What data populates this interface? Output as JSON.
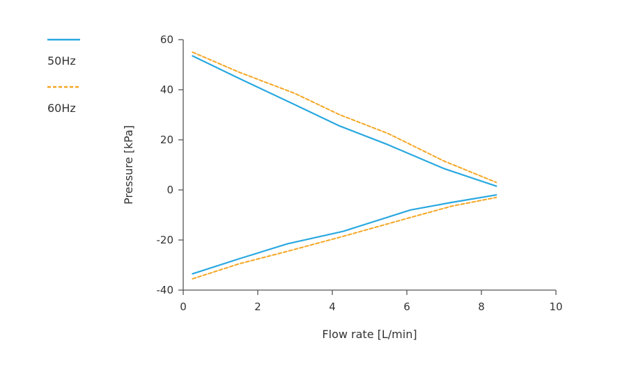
{
  "chart_data": {
    "type": "line",
    "title": "",
    "xlabel": "Flow rate [L/min]",
    "ylabel": "Pressure [kPa]",
    "xlim": [
      0,
      10
    ],
    "ylim": [
      -40,
      60
    ],
    "xticks": [
      0,
      2,
      4,
      6,
      8,
      10
    ],
    "yticks": [
      -40,
      -20,
      0,
      20,
      40,
      60
    ],
    "grid": false,
    "legend_position": "top-left",
    "series": [
      {
        "name": "50Hz",
        "label": "50Hz",
        "color": "#29a8e0",
        "dash": "solid",
        "x": [
          0.25,
          1.5,
          3.0,
          4.2,
          5.5,
          7.0,
          8.4
        ],
        "y": [
          53.5,
          44.5,
          34.0,
          25.5,
          18.0,
          8.5,
          1.5
        ]
      },
      {
        "name": "60Hz",
        "label": "60Hz",
        "color": "#f5a623",
        "dash": "dashed",
        "x": [
          0.25,
          1.5,
          3.0,
          4.2,
          5.5,
          7.0,
          8.4
        ],
        "y": [
          55.0,
          47.0,
          38.5,
          30.0,
          22.5,
          11.5,
          3.0
        ]
      },
      {
        "name": "50Hz",
        "label": "50Hz",
        "color": "#29a8e0",
        "dash": "solid",
        "x": [
          0.25,
          1.5,
          2.8,
          4.3,
          6.1,
          7.2,
          8.4
        ],
        "y": [
          -33.5,
          -27.5,
          -21.5,
          -16.5,
          -8.0,
          -5.0,
          -2.0
        ]
      },
      {
        "name": "60Hz",
        "label": "60Hz",
        "color": "#f5a623",
        "dash": "dashed",
        "x": [
          0.25,
          1.5,
          2.8,
          4.3,
          6.1,
          7.2,
          8.4
        ],
        "y": [
          -35.5,
          -29.5,
          -24.5,
          -18.5,
          -11.0,
          -6.5,
          -3.0
        ]
      }
    ],
    "legend": [
      {
        "label": "50Hz",
        "color": "#29a8e0",
        "dash": "solid"
      },
      {
        "label": "60Hz",
        "color": "#f5a623",
        "dash": "dashed"
      }
    ]
  }
}
